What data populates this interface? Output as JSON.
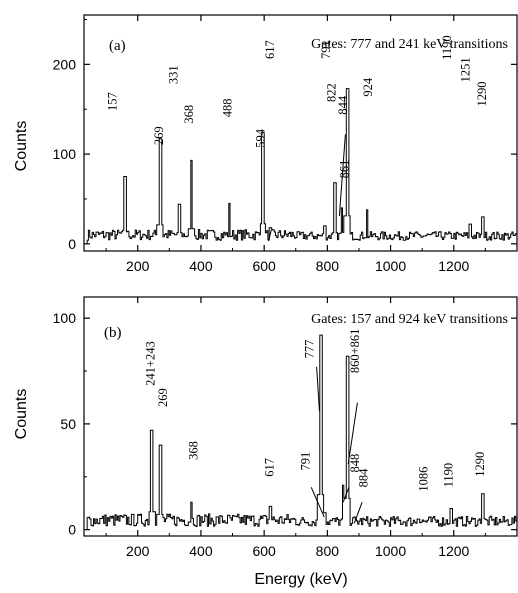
{
  "chart_data": {
    "type": "histogram",
    "xlabel": "Energy (keV)",
    "ylabel": "Counts",
    "xlim": [
      30,
      1400
    ],
    "x_ticks": [
      200,
      400,
      600,
      800,
      1000,
      1200
    ],
    "panels": [
      {
        "id": "a",
        "panel_label": "(a)",
        "gate_text": "Gates: 777 and 241 keV transitions",
        "ylim": [
          -8,
          255
        ],
        "y_ticks": [
          0,
          100,
          200
        ],
        "peaks": [
          {
            "x": 157,
            "y": 75,
            "label": "157"
          },
          {
            "x": 269,
            "y": 117,
            "label": "269"
          },
          {
            "x": 331,
            "y": 44,
            "label": "331"
          },
          {
            "x": 368,
            "y": 93,
            "label": "368"
          },
          {
            "x": 488,
            "y": 45,
            "label": "488"
          },
          {
            "x": 594,
            "y": 124,
            "label": "594"
          },
          {
            "x": 617,
            "y": 18,
            "label": "617"
          },
          {
            "x": 791,
            "y": 20,
            "label": "791"
          },
          {
            "x": 822,
            "y": 68,
            "label": "822"
          },
          {
            "x": 844,
            "y": 40,
            "label": "844"
          },
          {
            "x": 861,
            "y": 173,
            "label": "861"
          },
          {
            "x": 924,
            "y": 38,
            "label": "924"
          },
          {
            "x": 1190,
            "y": 6,
            "label": "1190"
          },
          {
            "x": 1251,
            "y": 22,
            "label": "1251"
          },
          {
            "x": 1290,
            "y": 30,
            "label": "1290"
          }
        ]
      },
      {
        "id": "b",
        "panel_label": "(b)",
        "gate_text": "Gates: 157 and 924 keV transitions",
        "ylim": [
          -3,
          110
        ],
        "y_ticks": [
          0,
          50,
          100
        ],
        "peaks": [
          {
            "x": 243,
            "y": 47,
            "label": "241+243"
          },
          {
            "x": 269,
            "y": 40,
            "label": "269"
          },
          {
            "x": 368,
            "y": 13,
            "label": "368"
          },
          {
            "x": 617,
            "y": 11,
            "label": "617"
          },
          {
            "x": 777,
            "y": 92,
            "label": "777"
          },
          {
            "x": 791,
            "y": 8,
            "label": "791"
          },
          {
            "x": 848,
            "y": 21,
            "label": "848"
          },
          {
            "x": 861,
            "y": 82,
            "label": "860+861"
          },
          {
            "x": 884,
            "y": 6,
            "label": "884"
          },
          {
            "x": 1086,
            "y": 5,
            "label": "1086"
          },
          {
            "x": 1190,
            "y": 10,
            "label": "1190"
          },
          {
            "x": 1290,
            "y": 17,
            "label": "1290"
          }
        ]
      }
    ]
  }
}
